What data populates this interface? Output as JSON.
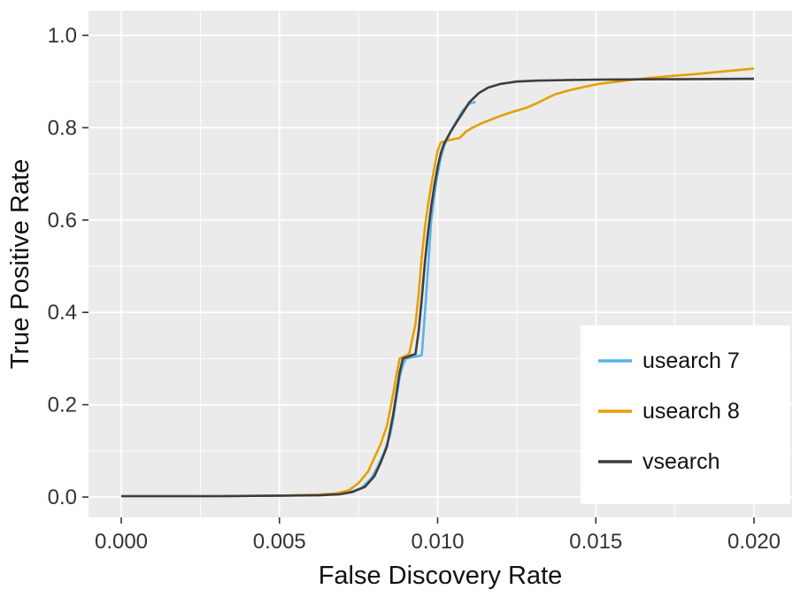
{
  "chart_data": {
    "type": "line",
    "title": "",
    "xlabel": "False Discovery Rate",
    "ylabel": "True Positive Rate",
    "xlim": [
      0,
      0.02
    ],
    "ylim": [
      0,
      1.0
    ],
    "x_ticks": [
      0,
      0.005,
      0.01,
      0.015,
      0.02
    ],
    "x_tick_labels": [
      "0.000",
      "0.005",
      "0.010",
      "0.015",
      "0.020"
    ],
    "y_ticks": [
      0,
      0.2,
      0.4,
      0.6,
      0.8,
      1.0
    ],
    "y_tick_labels": [
      "0.0",
      "0.2",
      "0.4",
      "0.6",
      "0.8",
      "1.0"
    ],
    "grid": true,
    "panel_background": "#EBEBEB",
    "grid_color": "#FFFFFF",
    "tick_color": "#333333",
    "legend_position": "inside-bottom-right",
    "legend_background": "#FFFFFF",
    "series": [
      {
        "name": "usearch 7",
        "color": "#56B4E9",
        "points": [
          [
            0,
            0.002
          ],
          [
            0.003,
            0.002
          ],
          [
            0.005,
            0.003
          ],
          [
            0.0063,
            0.004
          ],
          [
            0.0069,
            0.007
          ],
          [
            0.0073,
            0.012
          ],
          [
            0.0076,
            0.02
          ],
          [
            0.0079,
            0.04
          ],
          [
            0.0081,
            0.065
          ],
          [
            0.0083,
            0.095
          ],
          [
            0.0085,
            0.135
          ],
          [
            0.0086,
            0.17
          ],
          [
            0.0087,
            0.215
          ],
          [
            0.0088,
            0.26
          ],
          [
            0.0089,
            0.285
          ],
          [
            0.009,
            0.3
          ],
          [
            0.0095,
            0.307
          ],
          [
            0.0096,
            0.4
          ],
          [
            0.0097,
            0.5
          ],
          [
            0.0098,
            0.6
          ],
          [
            0.0099,
            0.655
          ],
          [
            0.01,
            0.7
          ],
          [
            0.0101,
            0.735
          ],
          [
            0.0102,
            0.76
          ],
          [
            0.0104,
            0.79
          ],
          [
            0.0106,
            0.815
          ],
          [
            0.0108,
            0.838
          ],
          [
            0.011,
            0.852
          ],
          [
            0.0112,
            0.856
          ]
        ]
      },
      {
        "name": "usearch 8",
        "color": "#E69F00",
        "points": [
          [
            0,
            0.002
          ],
          [
            0.003,
            0.002
          ],
          [
            0.005,
            0.003
          ],
          [
            0.0062,
            0.005
          ],
          [
            0.0068,
            0.008
          ],
          [
            0.0072,
            0.015
          ],
          [
            0.0075,
            0.03
          ],
          [
            0.0078,
            0.055
          ],
          [
            0.008,
            0.085
          ],
          [
            0.0082,
            0.115
          ],
          [
            0.0084,
            0.155
          ],
          [
            0.0085,
            0.19
          ],
          [
            0.0086,
            0.225
          ],
          [
            0.0087,
            0.265
          ],
          [
            0.0088,
            0.3
          ],
          [
            0.0091,
            0.31
          ],
          [
            0.0093,
            0.375
          ],
          [
            0.0094,
            0.44
          ],
          [
            0.0095,
            0.52
          ],
          [
            0.0096,
            0.585
          ],
          [
            0.0097,
            0.635
          ],
          [
            0.0098,
            0.675
          ],
          [
            0.0099,
            0.715
          ],
          [
            0.01,
            0.75
          ],
          [
            0.0101,
            0.768
          ],
          [
            0.0103,
            0.772
          ],
          [
            0.0107,
            0.778
          ],
          [
            0.0109,
            0.792
          ],
          [
            0.0111,
            0.8
          ],
          [
            0.0114,
            0.81
          ],
          [
            0.0117,
            0.818
          ],
          [
            0.012,
            0.826
          ],
          [
            0.0124,
            0.835
          ],
          [
            0.0128,
            0.843
          ],
          [
            0.0131,
            0.852
          ],
          [
            0.0134,
            0.862
          ],
          [
            0.0137,
            0.872
          ],
          [
            0.0141,
            0.88
          ],
          [
            0.0146,
            0.888
          ],
          [
            0.0151,
            0.895
          ],
          [
            0.0158,
            0.901
          ],
          [
            0.0166,
            0.907
          ],
          [
            0.0174,
            0.912
          ],
          [
            0.0183,
            0.917
          ],
          [
            0.0192,
            0.923
          ],
          [
            0.02,
            0.928
          ]
        ]
      },
      {
        "name": "vsearch",
        "color": "#3E3E3E",
        "points": [
          [
            0,
            0.002
          ],
          [
            0.003,
            0.002
          ],
          [
            0.005,
            0.003
          ],
          [
            0.0063,
            0.004
          ],
          [
            0.0069,
            0.006
          ],
          [
            0.0073,
            0.011
          ],
          [
            0.0077,
            0.022
          ],
          [
            0.008,
            0.045
          ],
          [
            0.0082,
            0.075
          ],
          [
            0.0084,
            0.11
          ],
          [
            0.0085,
            0.145
          ],
          [
            0.0086,
            0.18
          ],
          [
            0.0087,
            0.225
          ],
          [
            0.0088,
            0.27
          ],
          [
            0.0089,
            0.3
          ],
          [
            0.0093,
            0.31
          ],
          [
            0.0094,
            0.36
          ],
          [
            0.0095,
            0.43
          ],
          [
            0.0096,
            0.51
          ],
          [
            0.0097,
            0.575
          ],
          [
            0.0098,
            0.63
          ],
          [
            0.0099,
            0.675
          ],
          [
            0.01,
            0.715
          ],
          [
            0.0101,
            0.745
          ],
          [
            0.0102,
            0.765
          ],
          [
            0.0104,
            0.79
          ],
          [
            0.0106,
            0.812
          ],
          [
            0.0108,
            0.833
          ],
          [
            0.011,
            0.855
          ],
          [
            0.0113,
            0.875
          ],
          [
            0.0116,
            0.887
          ],
          [
            0.012,
            0.895
          ],
          [
            0.0125,
            0.9
          ],
          [
            0.0131,
            0.902
          ],
          [
            0.014,
            0.903
          ],
          [
            0.015,
            0.904
          ],
          [
            0.017,
            0.905
          ],
          [
            0.02,
            0.906
          ]
        ]
      }
    ]
  }
}
